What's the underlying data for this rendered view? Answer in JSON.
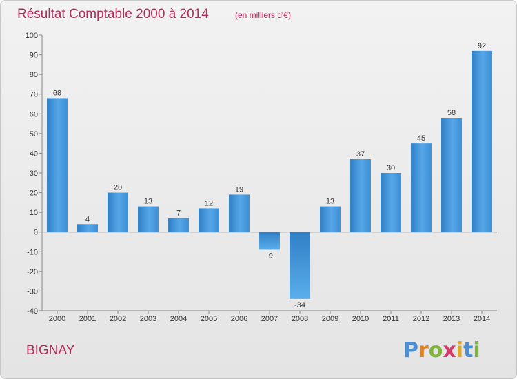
{
  "chart_data": {
    "type": "bar",
    "title": "Résultat Comptable 2000 à 2014",
    "subtitle": "(en milliers d'€)",
    "xlabel": "",
    "ylabel": "",
    "categories": [
      "2000",
      "2001",
      "2002",
      "2003",
      "2004",
      "2005",
      "2006",
      "2007",
      "2008",
      "2009",
      "2010",
      "2011",
      "2012",
      "2013",
      "2014"
    ],
    "values": [
      68,
      4,
      20,
      13,
      7,
      12,
      19,
      -9,
      -34,
      13,
      37,
      30,
      45,
      58,
      92
    ],
    "ylim": [
      -40,
      100
    ],
    "yticks": [
      -40,
      -30,
      -20,
      -10,
      0,
      10,
      20,
      30,
      40,
      50,
      60,
      70,
      80,
      90,
      100
    ],
    "grid": false,
    "bar_color": "#3f8fd6"
  },
  "commune": "BIGNAY",
  "logo": {
    "text": "Proxiti",
    "letters": [
      {
        "ch": "P",
        "color": "#4a8fd4"
      },
      {
        "ch": "r",
        "color": "#e0832a"
      },
      {
        "ch": "o",
        "color": "#7fb53a"
      },
      {
        "ch": "x",
        "color": "#d43a6a"
      },
      {
        "ch": "i",
        "color": "#e0a72a"
      },
      {
        "ch": "t",
        "color": "#4a8fd4"
      },
      {
        "ch": "i",
        "color": "#7fb53a"
      }
    ]
  }
}
